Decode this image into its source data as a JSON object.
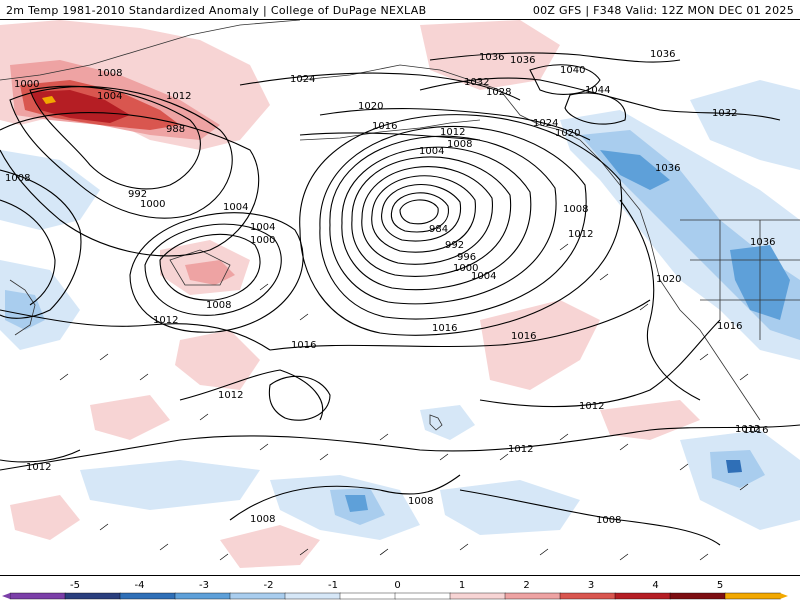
{
  "header": {
    "left": "2m Temp 1981-2010 Standardized Anomaly | College of DuPage NEXLAB",
    "right": "00Z GFS | F348 Valid: 12Z MON DEC 01 2025"
  },
  "colors": {
    "contour": "#000000",
    "land_outline": "#333333",
    "background": "#ffffff"
  },
  "colorbar": {
    "ticks": [
      "-5",
      "-4",
      "-3",
      "-2",
      "-1",
      "0",
      "1",
      "2",
      "3",
      "4",
      "5"
    ],
    "bins": [
      "#7b3fa8",
      "#2a3f7e",
      "#2f6fb7",
      "#5ea0d9",
      "#a9cdee",
      "#d6e7f7",
      "#ffffff",
      "#ffffff",
      "#f7d4d4",
      "#eea3a3",
      "#d9564f",
      "#b51e24",
      "#7d0e12",
      "#f2a800"
    ]
  },
  "isobars": [
    {
      "text": "1000"
    },
    {
      "text": "1008"
    },
    {
      "text": "1004"
    },
    {
      "text": "1012"
    },
    {
      "text": "988"
    },
    {
      "text": "1024"
    },
    {
      "text": "1036"
    },
    {
      "text": "1036"
    },
    {
      "text": "1040"
    },
    {
      "text": "1032"
    },
    {
      "text": "1028"
    },
    {
      "text": "1044"
    },
    {
      "text": "1036"
    },
    {
      "text": "1032"
    },
    {
      "text": "1020"
    },
    {
      "text": "1016"
    },
    {
      "text": "1012"
    },
    {
      "text": "1008"
    },
    {
      "text": "1024"
    },
    {
      "text": "1020"
    },
    {
      "text": "1036"
    },
    {
      "text": "1004"
    },
    {
      "text": "1008"
    },
    {
      "text": "992"
    },
    {
      "text": "1000"
    },
    {
      "text": "1004"
    },
    {
      "text": "1004"
    },
    {
      "text": "1000"
    },
    {
      "text": "1008"
    },
    {
      "text": "1012"
    },
    {
      "text": "984"
    },
    {
      "text": "992"
    },
    {
      "text": "996"
    },
    {
      "text": "1000"
    },
    {
      "text": "1004"
    },
    {
      "text": "1008"
    },
    {
      "text": "1012"
    },
    {
      "text": "1016"
    },
    {
      "text": "1016"
    },
    {
      "text": "1016"
    },
    {
      "text": "1020"
    },
    {
      "text": "1036"
    },
    {
      "text": "1016"
    },
    {
      "text": "1012"
    },
    {
      "text": "1016"
    },
    {
      "text": "1012"
    },
    {
      "text": "1012"
    },
    {
      "text": "1012"
    },
    {
      "text": "1008"
    },
    {
      "text": "1008"
    },
    {
      "text": "1008"
    },
    {
      "text": "1012"
    }
  ]
}
